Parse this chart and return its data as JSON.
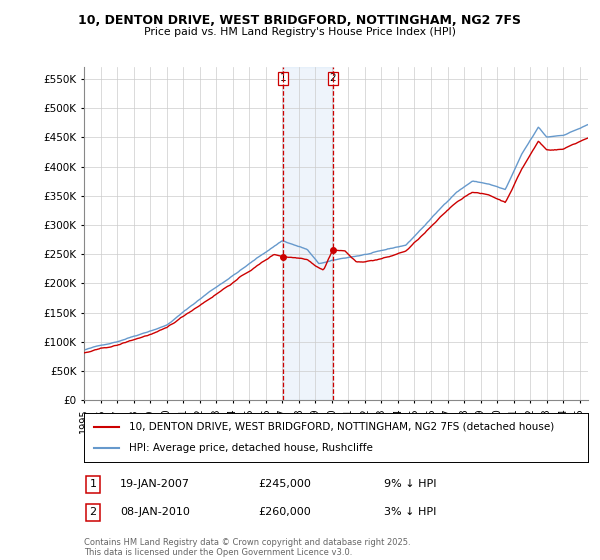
{
  "title": "10, DENTON DRIVE, WEST BRIDGFORD, NOTTINGHAM, NG2 7FS",
  "subtitle": "Price paid vs. HM Land Registry's House Price Index (HPI)",
  "ylabel_ticks": [
    "£0",
    "£50K",
    "£100K",
    "£150K",
    "£200K",
    "£250K",
    "£300K",
    "£350K",
    "£400K",
    "£450K",
    "£500K",
    "£550K"
  ],
  "ytick_values": [
    0,
    50000,
    100000,
    150000,
    200000,
    250000,
    300000,
    350000,
    400000,
    450000,
    500000,
    550000
  ],
  "ylim": [
    0,
    570000
  ],
  "xlim_start": 1995.0,
  "xlim_end": 2025.5,
  "xtick_years": [
    1995,
    1996,
    1997,
    1998,
    1999,
    2000,
    2001,
    2002,
    2003,
    2004,
    2005,
    2006,
    2007,
    2008,
    2009,
    2010,
    2011,
    2012,
    2013,
    2014,
    2015,
    2016,
    2017,
    2018,
    2019,
    2020,
    2021,
    2022,
    2023,
    2024,
    2025
  ],
  "legend_entries": [
    "10, DENTON DRIVE, WEST BRIDGFORD, NOTTINGHAM, NG2 7FS (detached house)",
    "HPI: Average price, detached house, Rushcliffe"
  ],
  "legend_colors": [
    "#cc0000",
    "#6699cc"
  ],
  "transaction1_date": 2007.05,
  "transaction1_price": 245000,
  "transaction1_label": "1",
  "transaction1_date_str": "19-JAN-2007",
  "transaction1_pct": "9% ↓ HPI",
  "transaction2_date": 2010.05,
  "transaction2_price": 260000,
  "transaction2_label": "2",
  "transaction2_date_str": "08-JAN-2010",
  "transaction2_pct": "3% ↓ HPI",
  "footer": "Contains HM Land Registry data © Crown copyright and database right 2025.\nThis data is licensed under the Open Government Licence v3.0.",
  "bg_color": "#ffffff",
  "grid_color": "#cccccc",
  "red_color": "#cc0000",
  "blue_color": "#6699cc",
  "shade_color": "#aaccee"
}
